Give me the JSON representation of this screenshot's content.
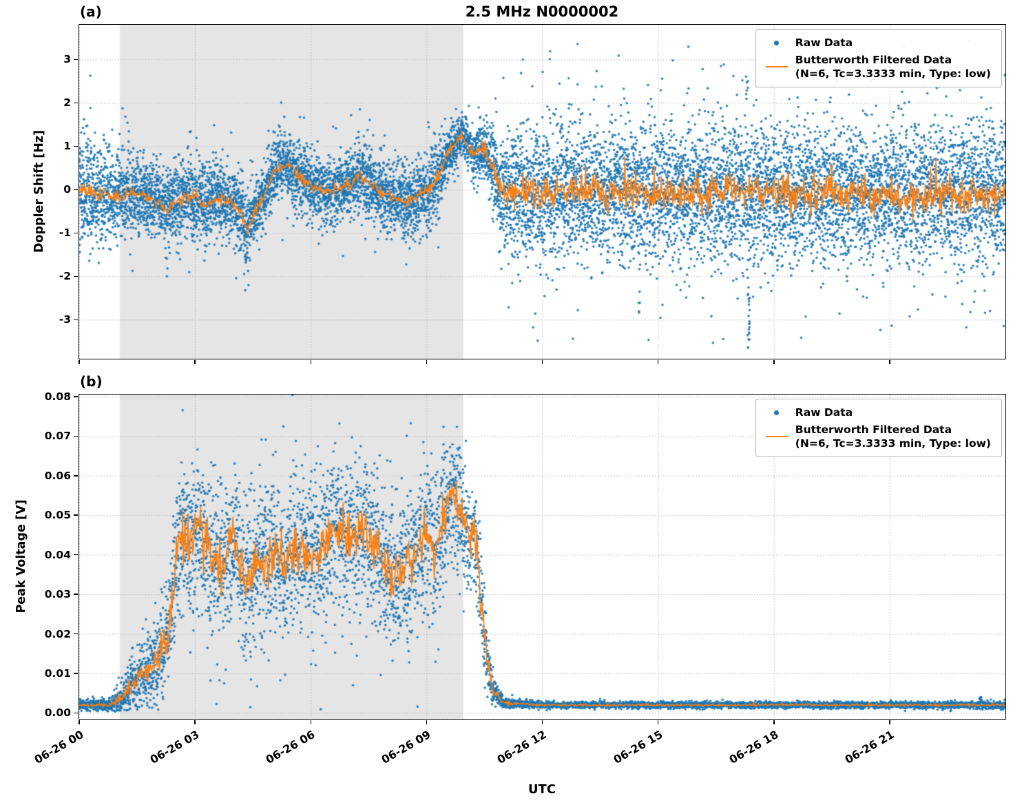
{
  "figure": {
    "panel_a_label": "(a)",
    "panel_b_label": "(b)",
    "xlabel": "UTC",
    "legend": {
      "raw_label": "Raw Data",
      "filtered_label": "Butterworth Filtered Data",
      "filtered_sublabel": "(N=6, Tc=3.3333 min, Type: low)"
    },
    "colors": {
      "raw": "#1f77b4",
      "filtered": "#ff7f0e",
      "shade": "#e5e5e5",
      "grid": "#b5b5b5",
      "axis": "#000000"
    }
  },
  "chart_data": [
    {
      "id": "doppler",
      "type": "scatter",
      "title": "2.5 MHz N0000002",
      "ylabel": "Doppler Shift [Hz]",
      "xlabel": "UTC",
      "x_unit": "hours since 06-26 00:00 UTC",
      "xlim": [
        0,
        24
      ],
      "ylim": [
        -3.9,
        3.8
      ],
      "yticks": [
        -3,
        -2,
        -1,
        0,
        1,
        2,
        3
      ],
      "ytick_labels": [
        "-3",
        "-2",
        "-1",
        "0",
        "1",
        "2",
        "3"
      ],
      "xticks": [
        0,
        3,
        6,
        9,
        12,
        15,
        18,
        21
      ],
      "xtick_labels": [
        "06-26 00",
        "06-26 03",
        "06-26 06",
        "06-26 09",
        "06-26 12",
        "06-26 15",
        "06-26 18",
        "06-26 21"
      ],
      "grid": true,
      "legend_position": "upper right",
      "shaded_region": [
        1.05,
        9.95
      ],
      "series": [
        {
          "name": "Raw Data",
          "type": "scatter",
          "color": "#1f77b4"
        },
        {
          "name": "Butterworth Filtered Data (N=6, Tc=3.3333 min, Type: low)",
          "type": "line",
          "color": "#ff7f0e"
        }
      ],
      "envelope": {
        "x": [
          0,
          0.5,
          1.0,
          1.5,
          2.0,
          2.3,
          2.6,
          3.0,
          3.3,
          3.6,
          4.0,
          4.2,
          4.35,
          4.5,
          4.8,
          5.1,
          5.4,
          5.7,
          6.0,
          6.5,
          7.0,
          7.3,
          7.6,
          8.0,
          8.5,
          9.0,
          9.3,
          9.6,
          9.9,
          10.2,
          10.5,
          10.7,
          10.9,
          11.2,
          12,
          13,
          14,
          15,
          16,
          17,
          18,
          19,
          20,
          21,
          22,
          23,
          24
        ],
        "center": [
          0.05,
          -0.1,
          -0.15,
          -0.05,
          -0.25,
          -0.45,
          -0.2,
          -0.15,
          -0.35,
          -0.2,
          -0.3,
          -0.55,
          -1.0,
          -0.6,
          -0.1,
          0.45,
          0.6,
          0.3,
          0.05,
          -0.05,
          0.15,
          0.35,
          0.1,
          -0.15,
          -0.3,
          -0.05,
          0.3,
          0.9,
          1.25,
          0.85,
          0.95,
          0.5,
          0.0,
          -0.1,
          -0.1,
          -0.05,
          -0.1,
          -0.08,
          -0.1,
          -0.05,
          -0.1,
          -0.08,
          -0.1,
          -0.06,
          -0.1,
          -0.08,
          -0.1
        ],
        "spread": [
          0.65,
          0.6,
          0.5,
          0.45,
          0.42,
          0.45,
          0.4,
          0.42,
          0.45,
          0.4,
          0.42,
          0.45,
          0.4,
          0.4,
          0.38,
          0.4,
          0.38,
          0.38,
          0.38,
          0.38,
          0.38,
          0.4,
          0.38,
          0.4,
          0.42,
          0.45,
          0.4,
          0.3,
          0.22,
          0.25,
          0.3,
          0.45,
          0.6,
          0.72,
          0.78,
          0.8,
          0.78,
          0.8,
          0.78,
          0.8,
          0.78,
          0.8,
          0.78,
          0.8,
          0.78,
          0.8,
          0.78
        ],
        "line_noise": [
          0.1,
          0.1,
          0.08,
          0.08,
          0.08,
          0.08,
          0.08,
          0.08,
          0.08,
          0.08,
          0.08,
          0.08,
          0.08,
          0.08,
          0.08,
          0.08,
          0.08,
          0.08,
          0.08,
          0.08,
          0.08,
          0.08,
          0.08,
          0.08,
          0.08,
          0.08,
          0.08,
          0.06,
          0.05,
          0.08,
          0.1,
          0.15,
          0.2,
          0.25,
          0.27,
          0.27,
          0.27,
          0.27,
          0.27,
          0.27,
          0.27,
          0.27,
          0.27,
          0.27,
          0.27,
          0.27,
          0.27
        ]
      },
      "outlier_streaks": [
        {
          "x": 17.35,
          "y_from": -3.65,
          "y_to": -2.35,
          "n": 20
        },
        {
          "x": 17.3,
          "y_from": 2.2,
          "y_to": 2.65,
          "n": 6
        },
        {
          "x": 14.5,
          "y_from": -2.9,
          "y_to": -2.6,
          "n": 4
        }
      ],
      "n_points": 12000,
      "outlier_prob": 0.012,
      "outlier_min_spread": 0,
      "clip_low": null,
      "seed": 42
    },
    {
      "id": "voltage",
      "type": "scatter",
      "title": "2.5 MHz N0000002",
      "ylabel": "Peak Voltage [V]",
      "xlabel": "UTC",
      "x_unit": "hours since 06-26 00:00 UTC",
      "xlim": [
        0,
        24
      ],
      "ylim": [
        -0.0015,
        0.0805
      ],
      "yticks": [
        0.0,
        0.01,
        0.02,
        0.03,
        0.04,
        0.05,
        0.06,
        0.07,
        0.08
      ],
      "ytick_labels": [
        "0.00",
        "0.01",
        "0.02",
        "0.03",
        "0.04",
        "0.05",
        "0.06",
        "0.07",
        "0.08"
      ],
      "xticks": [
        0,
        3,
        6,
        9,
        12,
        15,
        18,
        21
      ],
      "xtick_labels": [
        "06-26 00",
        "06-26 03",
        "06-26 06",
        "06-26 09",
        "06-26 12",
        "06-26 15",
        "06-26 18",
        "06-26 21"
      ],
      "grid": true,
      "legend_position": "upper right",
      "shaded_region": [
        1.05,
        9.95
      ],
      "series": [
        {
          "name": "Raw Data",
          "type": "scatter",
          "color": "#1f77b4"
        },
        {
          "name": "Butterworth Filtered Data (N=6, Tc=3.3333 min, Type: low)",
          "type": "line",
          "color": "#ff7f0e"
        }
      ],
      "envelope": {
        "x": [
          0,
          0.8,
          1.0,
          1.3,
          1.6,
          2.0,
          2.3,
          2.6,
          2.9,
          3.1,
          3.4,
          3.7,
          4.0,
          4.3,
          4.6,
          5.0,
          5.3,
          5.6,
          6.0,
          6.3,
          6.6,
          7.0,
          7.3,
          7.6,
          8.0,
          8.3,
          8.6,
          9.0,
          9.3,
          9.6,
          9.9,
          10.1,
          10.3,
          10.5,
          10.7,
          11.0,
          12,
          14,
          16,
          18,
          20,
          22,
          24
        ],
        "center": [
          0.002,
          0.002,
          0.003,
          0.006,
          0.009,
          0.013,
          0.02,
          0.045,
          0.042,
          0.047,
          0.04,
          0.037,
          0.045,
          0.034,
          0.036,
          0.04,
          0.038,
          0.042,
          0.039,
          0.042,
          0.046,
          0.044,
          0.048,
          0.043,
          0.037,
          0.034,
          0.04,
          0.045,
          0.042,
          0.055,
          0.052,
          0.045,
          0.042,
          0.02,
          0.006,
          0.0025,
          0.002,
          0.002,
          0.002,
          0.002,
          0.002,
          0.002,
          0.002
        ],
        "spread": [
          0.0006,
          0.0008,
          0.0015,
          0.003,
          0.004,
          0.005,
          0.007,
          0.009,
          0.01,
          0.009,
          0.01,
          0.01,
          0.009,
          0.009,
          0.01,
          0.01,
          0.01,
          0.01,
          0.01,
          0.01,
          0.01,
          0.01,
          0.009,
          0.01,
          0.009,
          0.009,
          0.01,
          0.01,
          0.01,
          0.009,
          0.009,
          0.008,
          0.008,
          0.006,
          0.002,
          0.0006,
          0.0004,
          0.0004,
          0.0004,
          0.0004,
          0.0004,
          0.0004,
          0.0005
        ],
        "line_noise": [
          0.0002,
          0.0003,
          0.0008,
          0.0015,
          0.002,
          0.0025,
          0.003,
          0.004,
          0.004,
          0.004,
          0.004,
          0.004,
          0.004,
          0.004,
          0.004,
          0.004,
          0.004,
          0.004,
          0.004,
          0.004,
          0.004,
          0.004,
          0.004,
          0.004,
          0.004,
          0.004,
          0.004,
          0.004,
          0.004,
          0.004,
          0.004,
          0.004,
          0.004,
          0.003,
          0.001,
          0.0003,
          0.0002,
          0.0002,
          0.0002,
          0.0002,
          0.0002,
          0.0002,
          0.0002
        ]
      },
      "outlier_streaks": [
        {
          "x": 23.35,
          "y_from": 0.003,
          "y_to": 0.0045,
          "n": 8
        }
      ],
      "n_points": 8000,
      "outlier_prob": 0.006,
      "outlier_min_spread": 0.003,
      "clip_low": 0.0004,
      "seed": 7
    }
  ]
}
